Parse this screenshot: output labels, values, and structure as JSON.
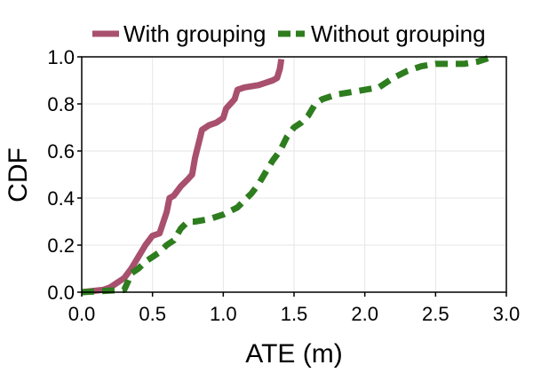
{
  "chart_data": {
    "type": "line",
    "title": "",
    "xlabel": "ATE (m)",
    "ylabel": "CDF",
    "xlim": [
      0.0,
      3.0
    ],
    "ylim": [
      0.0,
      1.0
    ],
    "xticks": [
      "0.0",
      "0.5",
      "1.0",
      "1.5",
      "2.0",
      "2.5",
      "3.0"
    ],
    "yticks": [
      "0.0",
      "0.2",
      "0.4",
      "0.6",
      "0.8",
      "1.0"
    ],
    "grid": true,
    "legend_position": "top",
    "series": [
      {
        "name": "With grouping",
        "color": "#a8506e",
        "style": "solid",
        "x": [
          0.0,
          0.15,
          0.2,
          0.3,
          0.35,
          0.4,
          0.45,
          0.5,
          0.55,
          0.6,
          0.62,
          0.65,
          0.7,
          0.75,
          0.78,
          0.8,
          0.85,
          0.9,
          0.95,
          1.0,
          1.02,
          1.05,
          1.08,
          1.1,
          1.15,
          1.25,
          1.3,
          1.35,
          1.38,
          1.4,
          1.41
        ],
        "y": [
          0.0,
          0.01,
          0.02,
          0.06,
          0.1,
          0.15,
          0.2,
          0.24,
          0.25,
          0.34,
          0.4,
          0.41,
          0.45,
          0.48,
          0.5,
          0.57,
          0.69,
          0.71,
          0.72,
          0.74,
          0.78,
          0.8,
          0.82,
          0.86,
          0.87,
          0.88,
          0.89,
          0.9,
          0.91,
          0.95,
          0.99
        ]
      },
      {
        "name": "Without grouping",
        "color": "#2e7d1e",
        "style": "dashed",
        "x": [
          0.0,
          0.3,
          0.33,
          0.35,
          0.4,
          0.45,
          0.5,
          0.55,
          0.6,
          0.65,
          0.7,
          0.75,
          0.8,
          0.9,
          1.0,
          1.1,
          1.15,
          1.2,
          1.25,
          1.3,
          1.35,
          1.4,
          1.45,
          1.5,
          1.55,
          1.6,
          1.65,
          1.7,
          1.8,
          1.9,
          2.0,
          2.1,
          2.2,
          2.3,
          2.4,
          2.5,
          2.6,
          2.7,
          2.8,
          2.9
        ],
        "y": [
          0.0,
          0.01,
          0.05,
          0.08,
          0.1,
          0.13,
          0.15,
          0.17,
          0.2,
          0.22,
          0.27,
          0.3,
          0.3,
          0.31,
          0.33,
          0.36,
          0.39,
          0.42,
          0.46,
          0.51,
          0.56,
          0.6,
          0.66,
          0.7,
          0.72,
          0.75,
          0.8,
          0.82,
          0.84,
          0.85,
          0.86,
          0.87,
          0.91,
          0.94,
          0.96,
          0.97,
          0.97,
          0.97,
          0.98,
          1.0
        ]
      }
    ]
  }
}
